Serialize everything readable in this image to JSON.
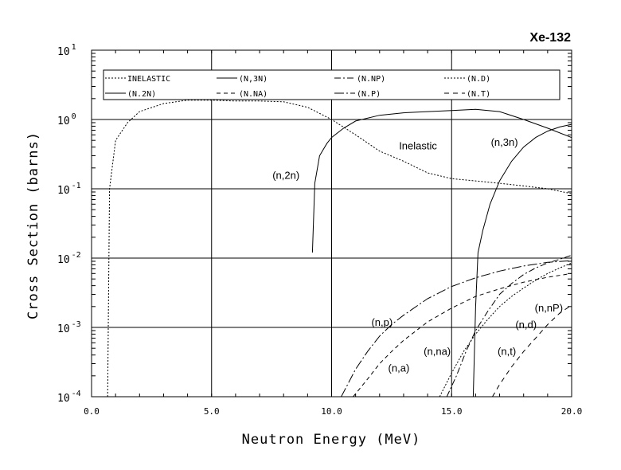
{
  "chart_data": {
    "type": "line",
    "title": "Xe-132",
    "xlabel": "Neutron Energy (MeV)",
    "ylabel": "Cross Section (barns)",
    "xscale": "linear",
    "yscale": "log",
    "xlim": [
      0,
      20
    ],
    "ylim": [
      0.0001,
      10
    ],
    "grid": true,
    "legend_position": "top",
    "x_ticks": [
      "0.0",
      "5.0",
      "10.0",
      "15.0",
      "20.0"
    ],
    "y_ticks": [
      {
        "base": "10",
        "exp": "1"
      },
      {
        "base": "10",
        "exp": "0"
      },
      {
        "base": "10",
        "exp": "-1"
      },
      {
        "base": "10",
        "exp": "-2"
      },
      {
        "base": "10",
        "exp": "-3"
      },
      {
        "base": "10",
        "exp": "-4"
      }
    ],
    "series": [
      {
        "name": "INELASTIC",
        "dash": "2,2",
        "x": [
          0.67,
          0.75,
          1.0,
          1.5,
          2.0,
          3.0,
          4.0,
          5.0,
          6.0,
          7.0,
          8.0,
          9.0,
          10.0,
          11.0,
          12.0,
          13.0,
          14.0,
          15.0,
          16.0,
          17.0,
          18.0,
          19.0,
          20.0
        ],
        "y": [
          0.0001,
          0.1,
          0.5,
          0.9,
          1.3,
          1.7,
          1.9,
          1.9,
          1.85,
          1.85,
          1.8,
          1.5,
          1.0,
          0.6,
          0.35,
          0.25,
          0.17,
          0.14,
          0.13,
          0.12,
          0.11,
          0.1,
          0.085
        ]
      },
      {
        "name": "(N,3N)",
        "dash": "",
        "x": [
          15.9,
          16.0,
          16.1,
          16.3,
          16.6,
          17.0,
          17.5,
          18.0,
          18.5,
          19.0,
          19.5,
          20.0
        ],
        "y": [
          0.0001,
          0.002,
          0.012,
          0.025,
          0.06,
          0.13,
          0.25,
          0.4,
          0.55,
          0.68,
          0.78,
          0.85
        ]
      },
      {
        "name": "(N.NP)",
        "dash": "8,3,2,3",
        "x": [
          14.8,
          15.2,
          15.6,
          16.0,
          16.5,
          17.0,
          17.5,
          18.0,
          18.5,
          19.0,
          19.5,
          20.0
        ],
        "y": [
          0.0001,
          0.0002,
          0.00045,
          0.0009,
          0.0017,
          0.003,
          0.0043,
          0.0058,
          0.0072,
          0.0085,
          0.0096,
          0.011
        ]
      },
      {
        "name": "(N.D)",
        "dash": "2,2",
        "x": [
          14.5,
          15.0,
          15.5,
          16.0,
          16.5,
          17.0,
          17.5,
          18.0,
          18.5,
          19.0,
          19.5,
          20.0
        ],
        "y": [
          0.0001,
          0.00022,
          0.00045,
          0.0008,
          0.0013,
          0.002,
          0.0028,
          0.0037,
          0.0048,
          0.006,
          0.0072,
          0.0085
        ]
      },
      {
        "name": "(N.2N)",
        "dash": "",
        "x": [
          9.2,
          9.3,
          9.5,
          9.8,
          10.0,
          10.5,
          11.0,
          12.0,
          13.0,
          14.0,
          15.0,
          16.0,
          17.0,
          18.0,
          19.0,
          20.0
        ],
        "y": [
          0.012,
          0.12,
          0.3,
          0.45,
          0.55,
          0.75,
          0.95,
          1.15,
          1.25,
          1.3,
          1.35,
          1.4,
          1.3,
          1.0,
          0.75,
          0.55
        ]
      },
      {
        "name": "(N.NA)",
        "dash": "5,4",
        "x": [
          10.9,
          11.5,
          12.0,
          12.5,
          13.0,
          14.0,
          15.0,
          16.0,
          17.0,
          18.0,
          19.0,
          20.0
        ],
        "y": [
          0.0001,
          0.00018,
          0.0003,
          0.00045,
          0.00065,
          0.0012,
          0.0019,
          0.0028,
          0.0036,
          0.0045,
          0.0053,
          0.006
        ]
      },
      {
        "name": "(N.P)",
        "dash": "12,3,2,3",
        "x": [
          10.4,
          11.0,
          11.5,
          12.0,
          12.5,
          13.0,
          14.0,
          15.0,
          16.0,
          17.0,
          18.0,
          19.0,
          20.0
        ],
        "y": [
          0.0001,
          0.00025,
          0.00045,
          0.00075,
          0.0011,
          0.0015,
          0.0026,
          0.0039,
          0.0052,
          0.0065,
          0.0077,
          0.0087,
          0.0092
        ]
      },
      {
        "name": "(N.T)",
        "dash": "6,5",
        "x": [
          16.7,
          17.0,
          17.5,
          18.0,
          18.5,
          19.0,
          19.5,
          20.0
        ],
        "y": [
          0.0001,
          0.00015,
          0.00027,
          0.00045,
          0.0007,
          0.0011,
          0.0016,
          0.0021
        ]
      }
    ],
    "annotations": [
      {
        "text": "Inelastic",
        "x": 13.6,
        "y": 0.37
      },
      {
        "text": "(n,3n)",
        "x": 17.2,
        "y": 0.42
      },
      {
        "text": "(n,2n)",
        "x": 8.1,
        "y": 0.14
      },
      {
        "text": "(n,p)",
        "x": 12.1,
        "y": 0.00105
      },
      {
        "text": "(n,nP)",
        "x": 19.05,
        "y": 0.0017
      },
      {
        "text": "(n,d)",
        "x": 18.1,
        "y": 0.00098
      },
      {
        "text": "(n,na)",
        "x": 14.4,
        "y": 0.0004
      },
      {
        "text": "(n,t)",
        "x": 17.3,
        "y": 0.0004
      },
      {
        "text": "(n,a)",
        "x": 12.8,
        "y": 0.00023
      }
    ]
  }
}
